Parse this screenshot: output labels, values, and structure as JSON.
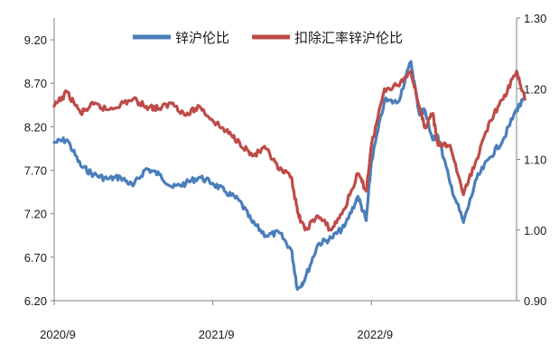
{
  "chart_data": {
    "type": "line",
    "x_ticks": [
      "2020/9",
      "2021/9",
      "2022/9"
    ],
    "x_start": "2020/9",
    "x_end": "2023/8",
    "left_axis": {
      "ylim": [
        6.2,
        9.45
      ],
      "ticks": [
        "6.20",
        "6.70",
        "7.20",
        "7.70",
        "8.20",
        "8.70",
        "9.20"
      ]
    },
    "right_axis": {
      "ylim": [
        0.9,
        1.3
      ],
      "ticks": [
        "0.90",
        "1.00",
        "1.10",
        "1.20",
        "1.30"
      ]
    },
    "grid": false,
    "legend_position": "top-center",
    "series": [
      {
        "name": "锌沪伦比",
        "axis": "left",
        "color": "#4A7EBB",
        "x": [
          "2020/9/1",
          "2020/10/1",
          "2020/11/1",
          "2020/12/1",
          "2021/1/1",
          "2021/2/1",
          "2021/3/1",
          "2021/4/1",
          "2021/5/1",
          "2021/6/1",
          "2021/7/1",
          "2021/8/1",
          "2021/9/1",
          "2021/10/1",
          "2021/11/1",
          "2021/12/1",
          "2022/1/1",
          "2022/2/1",
          "2022/3/1",
          "2022/3/15",
          "2022/4/1",
          "2022/5/1",
          "2022/6/1",
          "2022/7/1",
          "2022/8/1",
          "2022/8/20",
          "2022/9/1",
          "2022/10/1",
          "2022/11/1",
          "2022/12/1",
          "2022/12/20",
          "2023/1/1",
          "2023/1/20",
          "2023/2/1",
          "2023/3/1",
          "2023/4/1",
          "2023/5/1",
          "2023/6/1",
          "2023/7/1",
          "2023/8/1",
          "2023/8/20"
        ],
        "values": [
          8.02,
          8.05,
          7.75,
          7.65,
          7.6,
          7.62,
          7.52,
          7.72,
          7.65,
          7.5,
          7.55,
          7.62,
          7.55,
          7.45,
          7.35,
          7.1,
          6.95,
          6.98,
          6.78,
          6.33,
          6.45,
          6.85,
          6.92,
          7.05,
          7.4,
          7.12,
          7.8,
          8.5,
          8.48,
          8.95,
          8.35,
          8.4,
          8.05,
          8.1,
          7.55,
          7.1,
          7.6,
          7.85,
          8.05,
          8.4,
          8.52
        ]
      },
      {
        "name": "扣除汇率锌沪伦比",
        "axis": "right",
        "color": "#BE4B48",
        "x": [
          "2020/9/1",
          "2020/10/1",
          "2020/11/1",
          "2020/12/1",
          "2021/1/1",
          "2021/2/1",
          "2021/3/1",
          "2021/4/1",
          "2021/5/1",
          "2021/6/1",
          "2021/7/1",
          "2021/8/1",
          "2021/9/1",
          "2021/10/1",
          "2021/11/1",
          "2021/12/1",
          "2022/1/1",
          "2022/2/1",
          "2022/3/1",
          "2022/3/15",
          "2022/4/1",
          "2022/5/1",
          "2022/6/1",
          "2022/7/1",
          "2022/8/1",
          "2022/8/20",
          "2022/9/1",
          "2022/10/1",
          "2022/11/1",
          "2022/12/1",
          "2022/12/20",
          "2023/1/1",
          "2023/1/20",
          "2023/2/1",
          "2023/3/1",
          "2023/4/1",
          "2023/5/1",
          "2023/6/1",
          "2023/7/1",
          "2023/8/1",
          "2023/8/20"
        ],
        "values": [
          1.175,
          1.195,
          1.165,
          1.178,
          1.17,
          1.178,
          1.185,
          1.175,
          1.172,
          1.18,
          1.162,
          1.175,
          1.155,
          1.14,
          1.125,
          1.105,
          1.115,
          1.085,
          1.075,
          1.025,
          1.0,
          1.02,
          1.0,
          1.03,
          1.08,
          1.055,
          1.12,
          1.2,
          1.205,
          1.225,
          1.175,
          1.145,
          1.165,
          1.12,
          1.12,
          1.05,
          1.1,
          1.155,
          1.185,
          1.225,
          1.185
        ]
      }
    ]
  }
}
